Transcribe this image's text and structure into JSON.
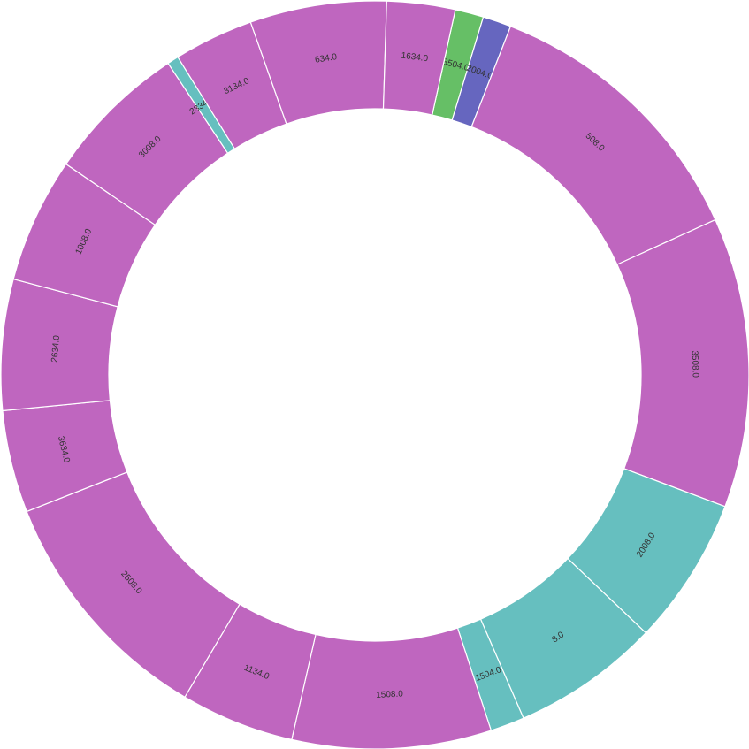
{
  "chart_data": {
    "type": "pie",
    "title": "",
    "donut": true,
    "colors": {
      "violet": "#BF66BF",
      "teal": "#66BFBF",
      "green": "#66BF66",
      "blue": "#6666BF",
      "red": "#BF6666"
    },
    "slices": [
      {
        "label": "3504.0",
        "value": 1.0,
        "color": "#66BF66"
      },
      {
        "label": "2004.0",
        "value": 1.0,
        "color": "#6666BF"
      },
      {
        "label": "508.0",
        "value": 10.0,
        "color": "#BF66BF"
      },
      {
        "label": "3508.0",
        "value": 10.2,
        "color": "#BF66BF"
      },
      {
        "label": "2008.0",
        "value": 5.2,
        "color": "#66BFBF"
      },
      {
        "label": "8.0",
        "value": 5.2,
        "color": "#66BFBF"
      },
      {
        "label": "1504.0",
        "value": 1.2,
        "color": "#66BFBF"
      },
      {
        "label": "1508.0",
        "value": 7.0,
        "color": "#BF66BF"
      },
      {
        "label": "1134.0",
        "value": 4.0,
        "color": "#BF66BF"
      },
      {
        "label": "2508.0",
        "value": 8.6,
        "color": "#BF66BF"
      },
      {
        "label": "3634.0",
        "value": 3.6,
        "color": "#BF66BF"
      },
      {
        "label": "2634.0",
        "value": 4.6,
        "color": "#BF66BF"
      },
      {
        "label": "1008.0",
        "value": 4.4,
        "color": "#BF66BF"
      },
      {
        "label": "3008.0",
        "value": 5.0,
        "color": "#BF66BF"
      },
      {
        "label": "2334.0",
        "value": 0.4,
        "color": "#66BFBF"
      },
      {
        "label": "3134.0",
        "value": 2.8,
        "color": "#BF66BF"
      },
      {
        "label": "634.0",
        "value": 4.8,
        "color": "#BF66BF"
      },
      {
        "label": "1634.0",
        "value": 2.4,
        "color": "#BF66BF"
      }
    ]
  }
}
